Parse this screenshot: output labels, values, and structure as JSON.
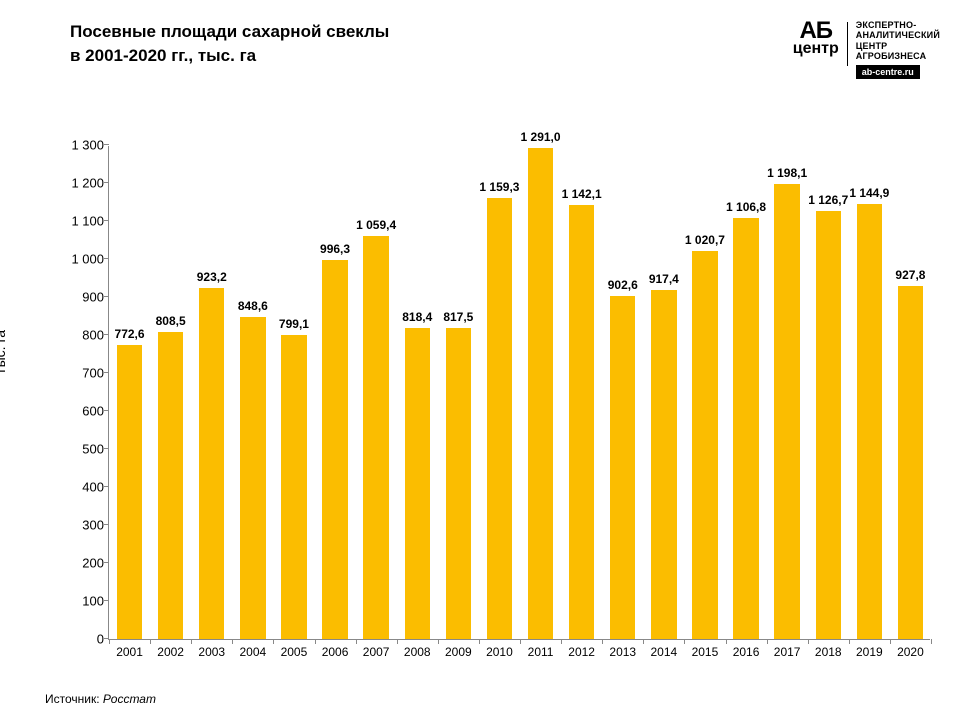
{
  "title_line1": "Посевные площади сахарной свеклы",
  "title_line2": "в 2001-2020 гг., тыс. га",
  "logo": {
    "ab_top": "АБ",
    "ab_bottom": "центр",
    "text_lines": [
      "ЭКСПЕРТНО-",
      "АНАЛИТИЧЕСКИЙ",
      "ЦЕНТР",
      "АГРОБИЗНЕСА"
    ],
    "url": "ab-centre.ru"
  },
  "chart": {
    "type": "bar",
    "ylabel": "Тыс. га",
    "ylim": [
      0,
      1300
    ],
    "ytick_step": 100,
    "bar_color": "#fbbd00",
    "bar_width_ratio": 0.62,
    "background_color": "#ffffff",
    "axis_color": "#888888",
    "value_fontsize": 12,
    "xlabel_fontsize": 12,
    "ytick_fontsize": 13,
    "ylabel_fontsize": 14,
    "categories": [
      "2001",
      "2002",
      "2003",
      "2004",
      "2005",
      "2006",
      "2007",
      "2008",
      "2009",
      "2010",
      "2011",
      "2012",
      "2013",
      "2014",
      "2015",
      "2016",
      "2017",
      "2018",
      "2019",
      "2020"
    ],
    "values": [
      772.6,
      808.5,
      923.2,
      848.6,
      799.1,
      996.3,
      1059.4,
      818.4,
      817.5,
      1159.3,
      1291.0,
      1142.1,
      902.6,
      917.4,
      1020.7,
      1106.8,
      1198.1,
      1126.7,
      1144.9,
      927.8
    ],
    "value_labels": [
      "772,6",
      "808,5",
      "923,2",
      "848,6",
      "799,1",
      "996,3",
      "1 059,4",
      "818,4",
      "817,5",
      "1 159,3",
      "1 291,0",
      "1 142,1",
      "902,6",
      "917,4",
      "1 020,7",
      "1 106,8",
      "1 198,1",
      "1 126,7",
      "1 144,9",
      "927,8"
    ]
  },
  "source": {
    "label": "Источник: ",
    "value": "Росстат"
  }
}
